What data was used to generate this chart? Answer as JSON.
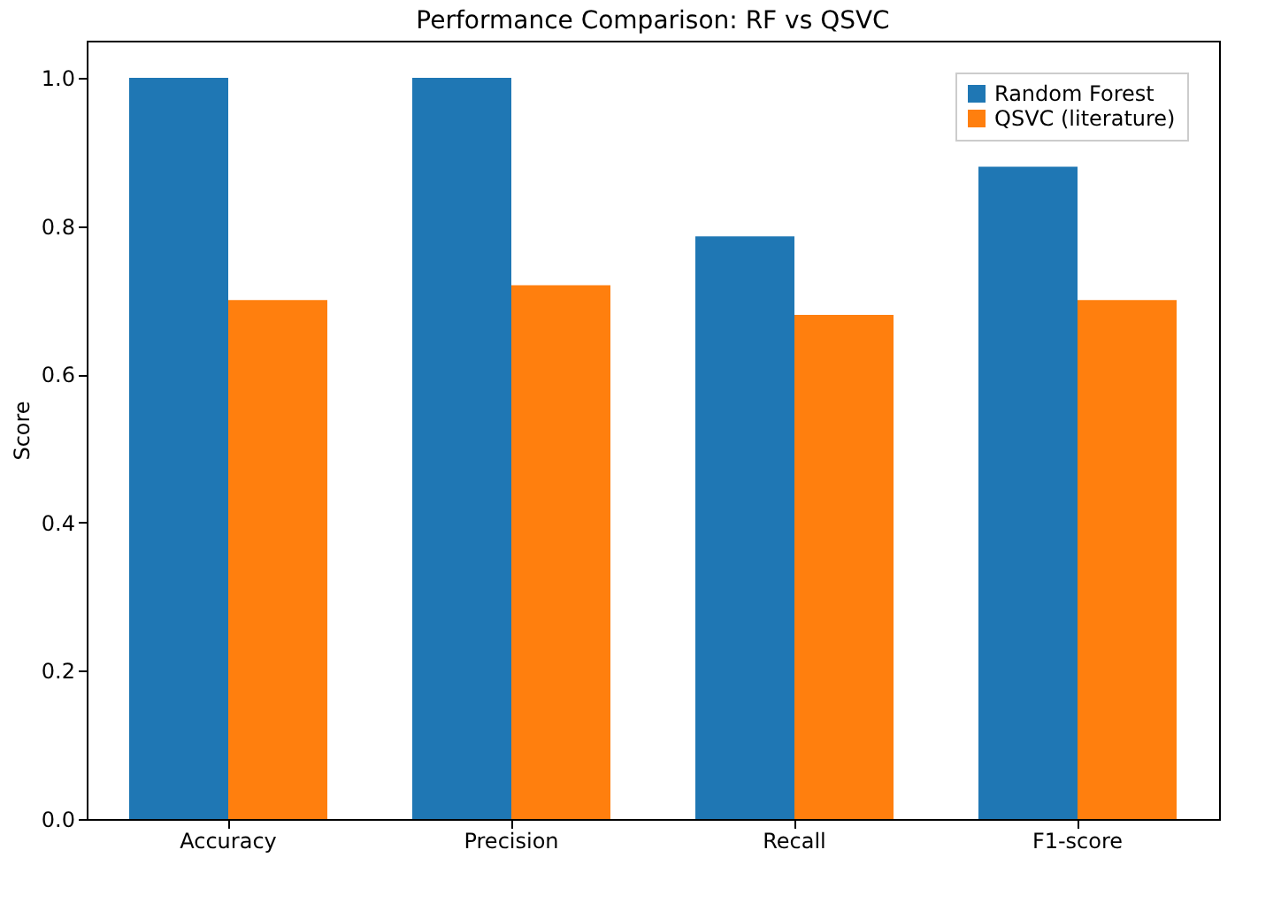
{
  "chart_data": {
    "type": "bar",
    "title": "Performance Comparison: RF vs QSVC",
    "ylabel": "Score",
    "categories": [
      "Accuracy",
      "Precision",
      "Recall",
      "F1-score"
    ],
    "series": [
      {
        "name": "Random Forest",
        "color": "#1f77b4",
        "values": [
          1.0,
          1.0,
          0.786,
          0.88
        ]
      },
      {
        "name": "QSVC (literature)",
        "color": "#ff7f0e",
        "values": [
          0.7,
          0.72,
          0.68,
          0.7
        ]
      }
    ],
    "ylim": [
      0,
      1.05
    ],
    "yticks": [
      {
        "value": 0,
        "label": "0.0"
      },
      0.2,
      0.4,
      0.6,
      0.8,
      {
        "value": 1,
        "label": "1.0"
      }
    ],
    "grid": false,
    "legend": "top right"
  }
}
